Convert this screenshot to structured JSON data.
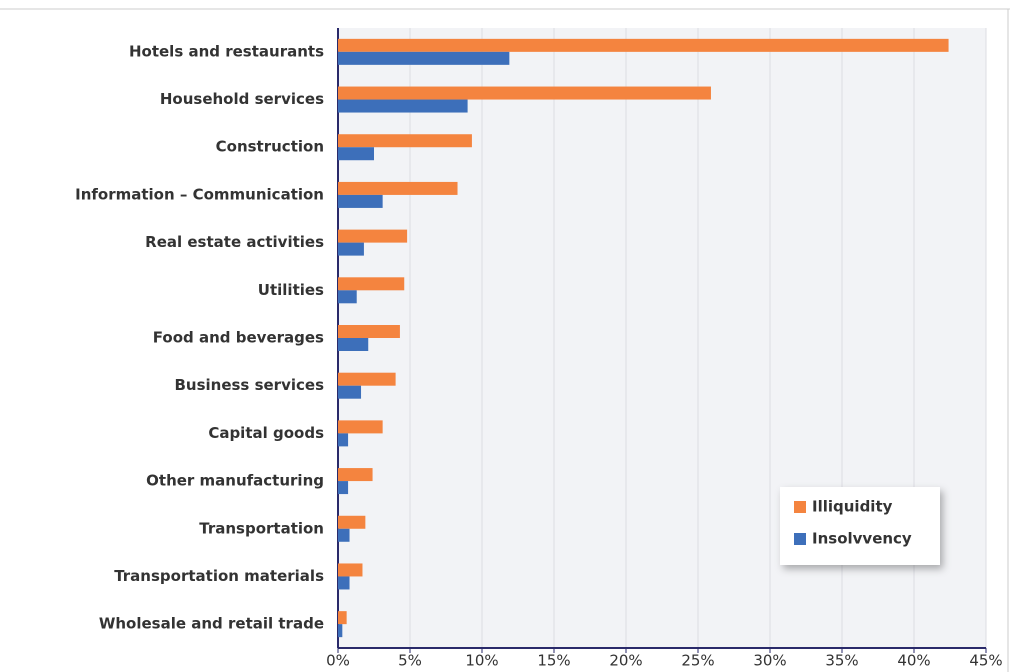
{
  "chart_data": {
    "type": "hbar",
    "categories": [
      "Hotels and restaurants",
      "Household services",
      "Construction",
      "Information – Communication",
      "Real estate activities",
      "Utilities",
      "Food and beverages",
      "Business services",
      "Capital goods",
      "Other manufacturing",
      "Transportation",
      "Transportation materials",
      "Wholesale and retail trade"
    ],
    "series": [
      {
        "name": "Illiquidity",
        "color": "#f4843f",
        "values": [
          42.4,
          25.9,
          9.3,
          8.3,
          4.8,
          4.6,
          4.3,
          4.0,
          3.1,
          2.4,
          1.9,
          1.7,
          0.6
        ]
      },
      {
        "name": "Insolvvency",
        "color": "#3d6fba",
        "values": [
          11.9,
          9.0,
          2.5,
          3.1,
          1.8,
          1.3,
          2.1,
          1.6,
          0.7,
          0.7,
          0.8,
          0.8,
          0.3
        ]
      }
    ],
    "xlim": [
      0,
      45
    ],
    "xticks": [
      {
        "value": 0,
        "label": "0%"
      },
      {
        "value": 5,
        "label": "5%"
      },
      {
        "value": 10,
        "label": "10%"
      },
      {
        "value": 15,
        "label": "15%"
      },
      {
        "value": 20,
        "label": "20%"
      },
      {
        "value": 25,
        "label": "25%"
      },
      {
        "value": 30,
        "label": "30%"
      },
      {
        "value": 35,
        "label": "35%"
      },
      {
        "value": 40,
        "label": "40%"
      },
      {
        "value": 45,
        "label": "45%"
      }
    ],
    "grid": true,
    "legend": "lower-right"
  }
}
